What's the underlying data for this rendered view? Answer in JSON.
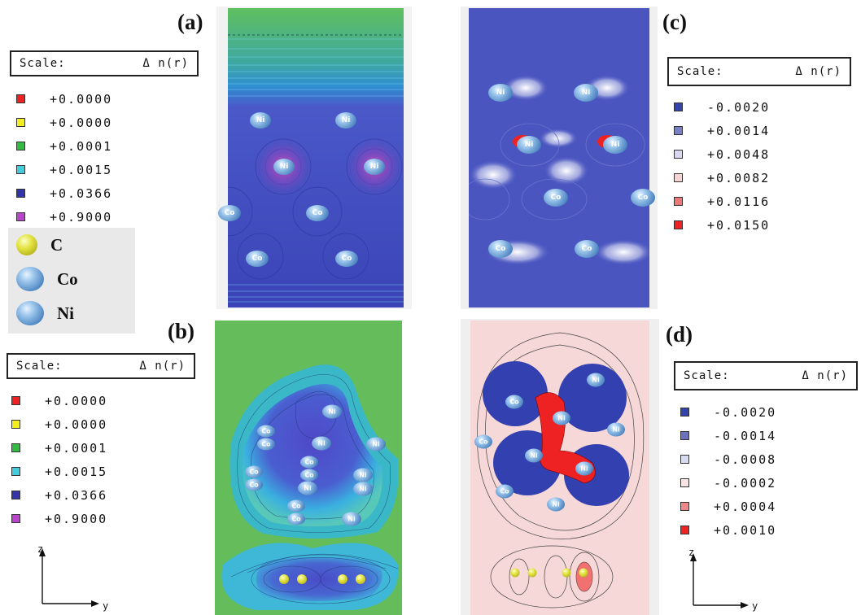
{
  "panels": {
    "a": {
      "label": "(a)"
    },
    "b": {
      "label": "(b)"
    },
    "c": {
      "label": "(c)"
    },
    "d": {
      "label": "(d)"
    }
  },
  "scale": {
    "word": "Scale:",
    "symbol": "Δ n(r)"
  },
  "legend_ab": [
    {
      "value": "+0.0000",
      "color": "#ee2222"
    },
    {
      "value": "+0.0000",
      "color": "#f2ee22"
    },
    {
      "value": "+0.0001",
      "color": "#33bb44"
    },
    {
      "value": "+0.0015",
      "color": "#44ccdd"
    },
    {
      "value": "+0.0366",
      "color": "#3333aa"
    },
    {
      "value": "+0.9000",
      "color": "#bb44cc"
    }
  ],
  "legend_c": [
    {
      "value": "-0.0020",
      "color": "#3344aa"
    },
    {
      "value": "+0.0014",
      "color": "#7a80c8"
    },
    {
      "value": "+0.0048",
      "color": "#d6d8f0"
    },
    {
      "value": "+0.0082",
      "color": "#f6d2d2"
    },
    {
      "value": "+0.0116",
      "color": "#ee7777"
    },
    {
      "value": "+0.0150",
      "color": "#ee2222"
    }
  ],
  "legend_d": [
    {
      "value": "-0.0020",
      "color": "#3344aa"
    },
    {
      "value": "-0.0014",
      "color": "#6a72c0"
    },
    {
      "value": "-0.0008",
      "color": "#d8dcf2"
    },
    {
      "value": "-0.0002",
      "color": "#fae4e4"
    },
    {
      "value": "+0.0004",
      "color": "#ee8888"
    },
    {
      "value": "+0.0010",
      "color": "#ee2222"
    }
  ],
  "atom_legend": [
    {
      "label": "C",
      "kind": "carbon"
    },
    {
      "label": "Co",
      "kind": "cobalt"
    },
    {
      "label": "Ni",
      "kind": "nickel"
    }
  ],
  "axes": {
    "z": "z",
    "y": "y"
  },
  "atoms": {
    "ni": "Ni",
    "co": "Co"
  }
}
